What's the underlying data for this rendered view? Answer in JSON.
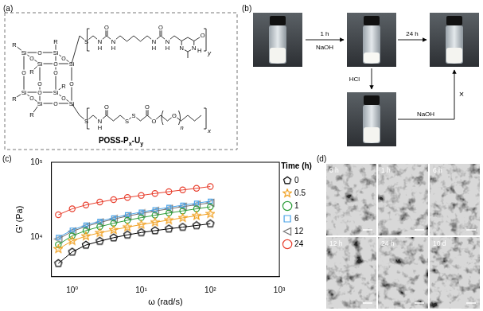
{
  "structure": {
    "label": "(a)",
    "name": [
      "POSS-P",
      "x",
      "-U",
      "y"
    ],
    "cage": {
      "vertex": "Si",
      "bridge": "O",
      "substituent": "R"
    },
    "upper_chain": [
      "S",
      "N",
      "H",
      "O",
      "N",
      "H",
      "N",
      "H",
      "O",
      "N",
      "H",
      "N",
      "N",
      "H",
      "O"
    ],
    "upper_repeat": "y",
    "lower_chain": [
      "S",
      "N",
      "H",
      "O",
      "S",
      "S",
      "O",
      "O",
      "O"
    ],
    "lower_repeat_inner": "n",
    "lower_repeat": "x"
  },
  "photos": {
    "label": "(b)",
    "step1_time": "1 h",
    "step1_reagent": "NaOH",
    "step2_time": "24 h",
    "acid": "HCl",
    "base": "NaOH",
    "blocked": "×"
  },
  "chart_label": "(c)",
  "chart_data": {
    "type": "line",
    "x_label": "ω (rad/s)",
    "y_label": "G' (Pa)",
    "legend_title": "Time (h)",
    "legend": "right",
    "log": true,
    "grid": false,
    "xlim": [
      0.5,
      1000
    ],
    "xticks": [
      {
        "value": 1,
        "label": "10⁰"
      },
      {
        "value": 10,
        "label": "10¹"
      },
      {
        "value": 100,
        "label": "10²"
      },
      {
        "value": 1000,
        "label": "10³"
      }
    ],
    "ylim": [
      3000,
      100000
    ],
    "yticks": [
      {
        "value": 10000,
        "label": "10⁴"
      },
      {
        "value": 100000,
        "label": "10⁵"
      }
    ],
    "x": [
      0.63,
      1,
      1.58,
      2.51,
      3.98,
      6.31,
      10,
      15.8,
      25.1,
      39.8,
      63.1,
      100
    ],
    "series": [
      {
        "name": "0",
        "color": "#000000",
        "marker": "pentagon",
        "line_style": "solid",
        "values": [
          4500,
          6400,
          7900,
          8900,
          9900,
          10800,
          11600,
          12300,
          13000,
          13700,
          14400,
          15200
        ]
      },
      {
        "name": "0.5",
        "color": "#f0a020",
        "marker": "star",
        "line_style": "solid",
        "values": [
          7000,
          9000,
          10400,
          11500,
          12600,
          13700,
          14800,
          15900,
          17000,
          18200,
          19400,
          20600
        ]
      },
      {
        "name": "1",
        "color": "#2e9e3a",
        "marker": "circle",
        "line_style": "solid",
        "values": [
          8000,
          10500,
          12300,
          13900,
          15400,
          16900,
          18300,
          19700,
          21100,
          22500,
          24000,
          25500
        ]
      },
      {
        "name": "6",
        "color": "#4aa3e8",
        "marker": "rect",
        "line_style": "solid",
        "values": [
          10000,
          12500,
          14600,
          16400,
          18200,
          20000,
          21700,
          23400,
          25100,
          26800,
          28500,
          30300
        ]
      },
      {
        "name": "12",
        "color": "#707070",
        "marker": "triangle-left",
        "line_style": "solid",
        "values": [
          9500,
          12000,
          14000,
          15800,
          17500,
          19200,
          20800,
          22400,
          24000,
          25600,
          27200,
          28800
        ]
      },
      {
        "name": "24",
        "color": "#e8402f",
        "marker": "circle",
        "line_style": "solid",
        "values": [
          20000,
          24000,
          27000,
          29500,
          31800,
          34000,
          36200,
          38400,
          40600,
          42800,
          45000,
          47500
        ]
      }
    ]
  },
  "sem": {
    "label": "(d)",
    "times": [
      "0 h",
      "1 h",
      "6 h",
      "12 h",
      "24 h",
      "10 d"
    ]
  }
}
